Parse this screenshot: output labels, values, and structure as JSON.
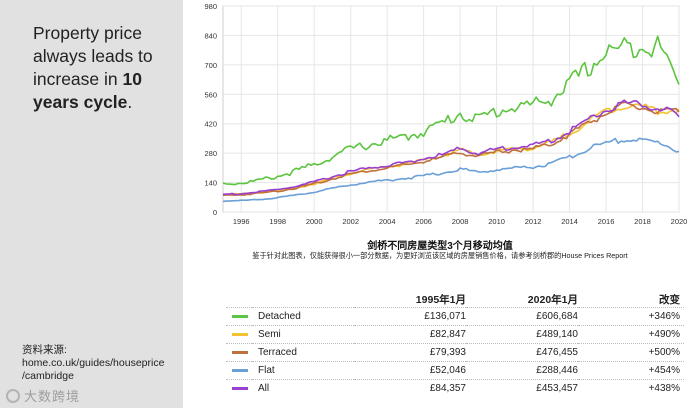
{
  "headline": {
    "line1": "Property price",
    "line2": "always leads to",
    "line3": "increase in",
    "bold_num": "10",
    "bold_rest": "years cycle",
    "end": "."
  },
  "source": {
    "label": "资料来源:",
    "line1": "home.co.uk/guides/houseprice",
    "line2": "/cambridge"
  },
  "watermark": "大数跨境",
  "chart_data": {
    "type": "line",
    "title": "剑桥不同房屋类型3个月移动均值",
    "note": "鉴于针对此图表，仅能获得很小一部分数据，为更好浏览该区域的房屋销售价格，请参考剑桥郡的House Prices Report",
    "xlabel": "",
    "ylabel": "",
    "xlim": [
      1995,
      2020
    ],
    "ylim": [
      0,
      980
    ],
    "x_ticks": [
      1996,
      1998,
      2000,
      2002,
      2004,
      2006,
      2008,
      2010,
      2012,
      2014,
      2016,
      2018,
      2020
    ],
    "y_ticks": [
      0,
      140,
      280,
      420,
      560,
      700,
      840,
      980
    ],
    "series_x": [
      1995,
      1996,
      1997,
      1998,
      1999,
      2000,
      2001,
      2002,
      2003,
      2004,
      2005,
      2006,
      2007,
      2008,
      2009,
      2010,
      2011,
      2012,
      2013,
      2014,
      2015,
      2016,
      2017,
      2018,
      2019,
      2020
    ],
    "series": [
      {
        "name": "Detached",
        "color": "#5cc53f",
        "values": [
          136,
          138,
          150,
          170,
          195,
          225,
          265,
          300,
          320,
          340,
          355,
          385,
          420,
          470,
          440,
          480,
          500,
          510,
          540,
          610,
          680,
          760,
          780,
          800,
          780,
          607
        ]
      },
      {
        "name": "Semi",
        "color": "#f4c430",
        "values": [
          83,
          85,
          92,
          102,
          115,
          135,
          160,
          185,
          200,
          215,
          228,
          245,
          265,
          295,
          270,
          290,
          300,
          305,
          330,
          375,
          430,
          480,
          510,
          500,
          480,
          489
        ]
      },
      {
        "name": "Terraced",
        "color": "#c0703a",
        "values": [
          79,
          82,
          90,
          100,
          114,
          134,
          158,
          182,
          197,
          210,
          224,
          240,
          258,
          285,
          265,
          285,
          295,
          300,
          325,
          370,
          425,
          470,
          505,
          495,
          475,
          476
        ]
      },
      {
        "name": "Flat",
        "color": "#6a9fd8",
        "values": [
          52,
          54,
          60,
          68,
          80,
          95,
          112,
          130,
          142,
          152,
          160,
          172,
          185,
          205,
          190,
          200,
          210,
          215,
          230,
          260,
          300,
          330,
          345,
          340,
          330,
          288
        ]
      },
      {
        "name": "All",
        "color": "#9b3fd0",
        "values": [
          84,
          87,
          96,
          107,
          122,
          142,
          168,
          193,
          208,
          222,
          236,
          253,
          272,
          302,
          280,
          298,
          310,
          316,
          340,
          385,
          440,
          485,
          520,
          510,
          495,
          453
        ]
      }
    ]
  },
  "table": {
    "headers": [
      "",
      "1995年1月",
      "2020年1月",
      "改变"
    ],
    "rows": [
      {
        "name": "Detached",
        "v1995": "£136,071",
        "v2020": "£606,684",
        "change": "+346%",
        "color": "#5cc53f"
      },
      {
        "name": "Semi",
        "v1995": "£82,847",
        "v2020": "£489,140",
        "change": "+490%",
        "color": "#f4c430"
      },
      {
        "name": "Terraced",
        "v1995": "£79,393",
        "v2020": "£476,455",
        "change": "+500%",
        "color": "#c0703a"
      },
      {
        "name": "Flat",
        "v1995": "£52,046",
        "v2020": "£288,446",
        "change": "+454%",
        "color": "#6a9fd8"
      },
      {
        "name": "All",
        "v1995": "£84,357",
        "v2020": "£453,457",
        "change": "+438%",
        "color": "#9b3fd0"
      }
    ]
  }
}
